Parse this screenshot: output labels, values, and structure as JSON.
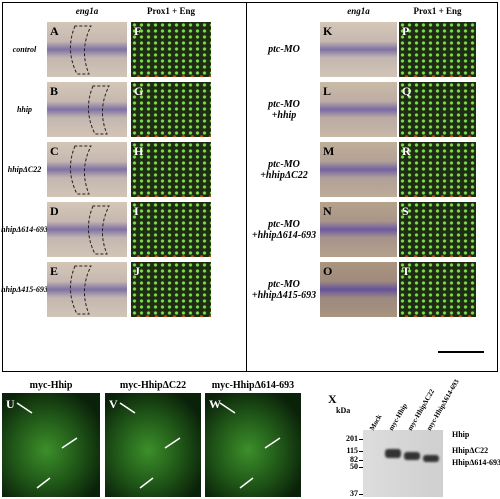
{
  "top_left": {
    "column_headers": [
      "eng1a",
      "Prox1 + Eng"
    ],
    "rows": [
      {
        "label": "control",
        "letters": [
          "A",
          "F"
        ]
      },
      {
        "label": "hhip",
        "letters": [
          "B",
          "G"
        ]
      },
      {
        "label": "hhipΔC22",
        "letters": [
          "C",
          "H"
        ]
      },
      {
        "label": "hhipΔ614-693",
        "letters": [
          "D",
          "I"
        ]
      },
      {
        "label": "hhipΔ415-693",
        "letters": [
          "E",
          "J"
        ]
      }
    ]
  },
  "top_right": {
    "column_headers": [
      "eng1a",
      "Prox1 + Eng"
    ],
    "rows": [
      {
        "label": [
          "ptc-MO"
        ],
        "letters": [
          "K",
          "P"
        ]
      },
      {
        "label": [
          "ptc-MO",
          "+hhip"
        ],
        "letters": [
          "L",
          "Q"
        ]
      },
      {
        "label": [
          "ptc-MO",
          "+hhipΔC22"
        ],
        "letters": [
          "M",
          "R"
        ]
      },
      {
        "label": [
          "ptc-MO",
          "+hhipΔ614-693"
        ],
        "letters": [
          "N",
          "S"
        ]
      },
      {
        "label": [
          "ptc-MO",
          "+hhipΔ415-693"
        ],
        "letters": [
          "O",
          "T"
        ]
      }
    ]
  },
  "bottom": {
    "panels": [
      {
        "letter": "U",
        "label": "myc-Hhip"
      },
      {
        "letter": "V",
        "label": "myc-HhipΔC22"
      },
      {
        "letter": "W",
        "label": "myc-HhipΔ614-693"
      }
    ],
    "blot": {
      "letter": "X",
      "unit": "kDa",
      "lanes": [
        "Mock",
        "myc-Hhip",
        "myc-HhipΔC22",
        "myc-HhipΔ614-693"
      ],
      "markers": [
        "201",
        "115",
        "82",
        "50",
        "37"
      ],
      "bands": [
        "Hhip",
        "HhipΔC22",
        "HhipΔ614-693"
      ]
    }
  }
}
